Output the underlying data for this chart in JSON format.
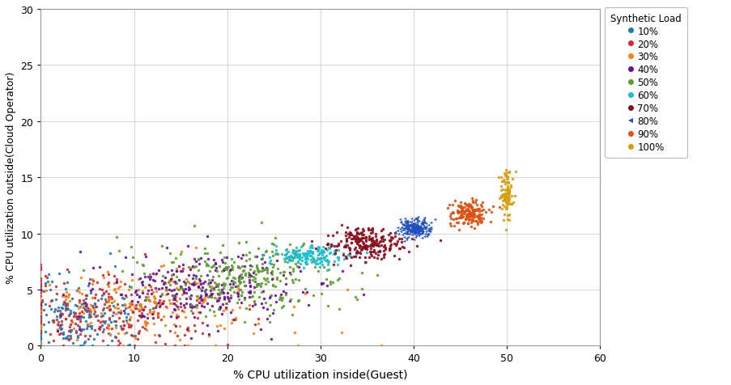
{
  "title": "",
  "xlabel": "% CPU utilization inside(Guest)",
  "ylabel": "% CPU utilization outside(Cloud Operator)",
  "xlim": [
    0,
    60
  ],
  "ylim": [
    0,
    30
  ],
  "xticks": [
    0,
    10,
    20,
    30,
    40,
    50,
    60
  ],
  "yticks": [
    0,
    5,
    10,
    15,
    20,
    25,
    30
  ],
  "legend_title": "Synthetic Load",
  "categories": [
    "10%",
    "20%",
    "30%",
    "40%",
    "50%",
    "60%",
    "70%",
    "80%",
    "90%",
    "100%"
  ],
  "color_map": {
    "10%": "#1F77B4",
    "20%": "#D62728",
    "30%": "#FF7F0E",
    "40%": "#6A0D9C",
    "50%": "#5B9E2D",
    "60%": "#17BECF",
    "70%": "#8B0A1A",
    "80%": "#1F4FBF",
    "90%": "#E05010",
    "100%": "#D4A010"
  },
  "marker_map": {
    "10%": "o",
    "20%": "o",
    "30%": "o",
    "40%": "o",
    "50%": "o",
    "60%": "o",
    "70%": "o",
    "80%": "<",
    "90%": "o",
    "100%": "o"
  },
  "clusters": {
    "10%": {
      "x_center": 4,
      "y_center": 2.5,
      "x_std": 3.5,
      "y_std": 1.5,
      "n": 150,
      "tight": false
    },
    "20%": {
      "x_center": 7,
      "y_center": 3.0,
      "x_std": 5.0,
      "y_std": 1.5,
      "n": 180,
      "tight": false
    },
    "30%": {
      "x_center": 11,
      "y_center": 3.5,
      "x_std": 5.5,
      "y_std": 1.5,
      "n": 160,
      "tight": false
    },
    "40%": {
      "x_center": 17,
      "y_center": 5.0,
      "x_std": 4.5,
      "y_std": 1.5,
      "n": 220,
      "tight": false
    },
    "50%": {
      "x_center": 22,
      "y_center": 6.0,
      "x_std": 4.5,
      "y_std": 1.5,
      "n": 220,
      "tight": false
    },
    "60%": {
      "x_center": 29,
      "y_center": 8.0,
      "x_std": 2.0,
      "y_std": 0.5,
      "n": 150,
      "tight": true
    },
    "70%": {
      "x_center": 35,
      "y_center": 9.2,
      "x_std": 2.0,
      "y_std": 0.7,
      "n": 220,
      "tight": true
    },
    "80%": {
      "x_center": 40,
      "y_center": 10.5,
      "x_std": 0.8,
      "y_std": 0.4,
      "n": 220,
      "tight": true
    },
    "90%": {
      "x_center": 46,
      "y_center": 11.8,
      "x_std": 1.0,
      "y_std": 0.6,
      "n": 160,
      "tight": true
    },
    "100%": {
      "x_center": 50,
      "y_center": 13.5,
      "x_std": 0.3,
      "y_std": 1.2,
      "n": 100,
      "tight": true
    }
  },
  "background_color": "#ffffff",
  "grid_color": "#d0d0d0"
}
